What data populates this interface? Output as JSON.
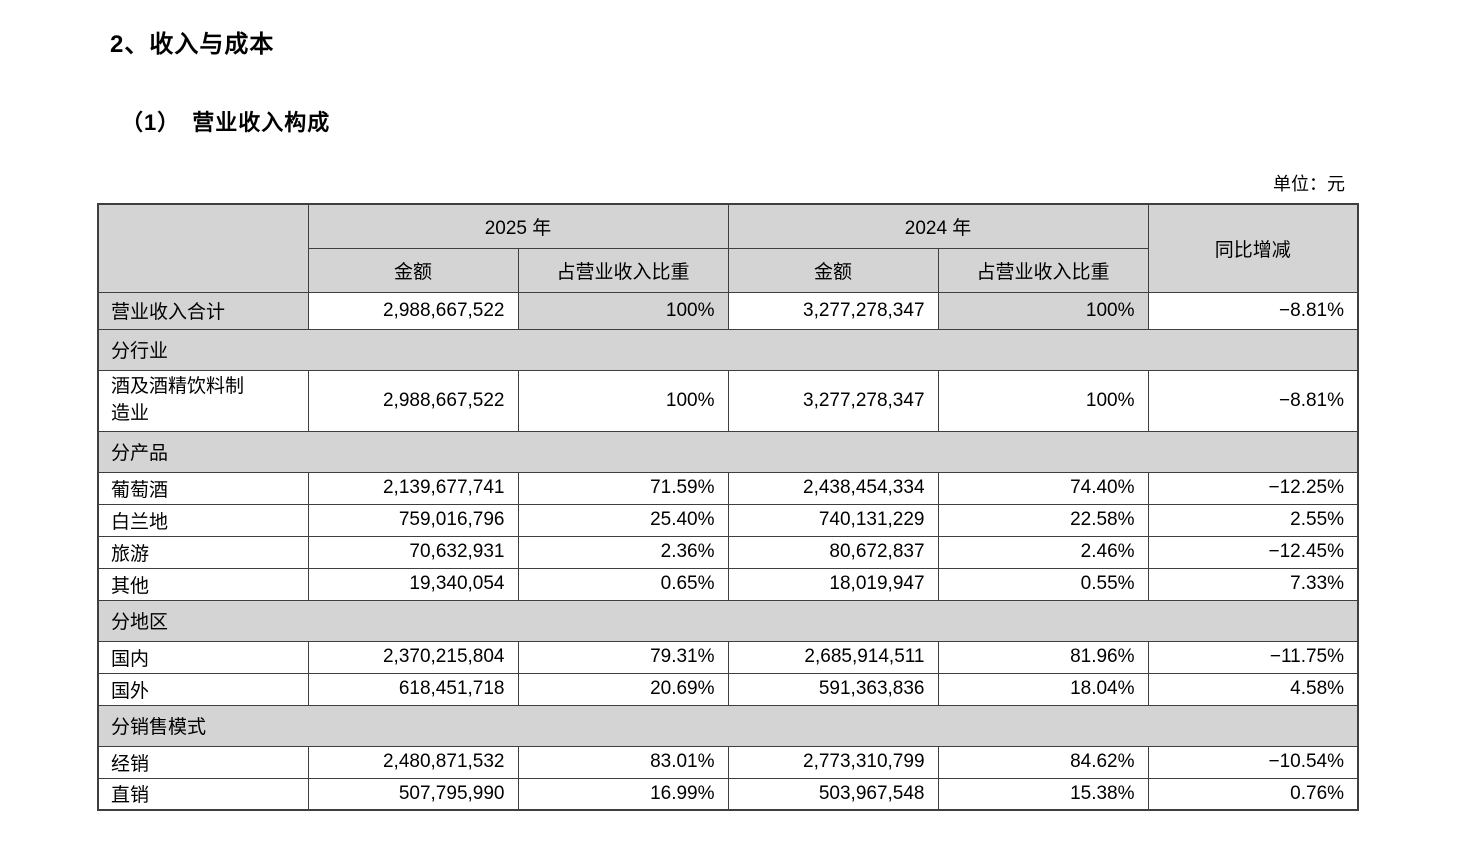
{
  "page": {
    "section_title": "2、收入与成本",
    "subsection_title": "（1）　营业收入构成",
    "unit_label": "单位：元"
  },
  "table": {
    "header": {
      "corner": "",
      "year_2025": "2025 年",
      "year_2024": "2024 年",
      "amount": "金额",
      "ratio": "占营业收入比重",
      "yoy": "同比增减"
    },
    "rows": [
      {
        "type": "data",
        "emphasis": true,
        "label": "营业收入合计",
        "amount_2025": "2,988,667,522",
        "ratio_2025": "100%",
        "amount_2024": "3,277,278,347",
        "ratio_2024": "100%",
        "yoy": "−8.81%"
      },
      {
        "type": "section",
        "label": "分行业"
      },
      {
        "type": "data",
        "label": "酒及酒精饮料制造业",
        "amount_2025": "2,988,667,522",
        "ratio_2025": "100%",
        "amount_2024": "3,277,278,347",
        "ratio_2024": "100%",
        "yoy": "−8.81%"
      },
      {
        "type": "section",
        "label": "分产品"
      },
      {
        "type": "data",
        "label": "葡萄酒",
        "amount_2025": "2,139,677,741",
        "ratio_2025": "71.59%",
        "amount_2024": "2,438,454,334",
        "ratio_2024": "74.40%",
        "yoy": "−12.25%"
      },
      {
        "type": "data",
        "label": "白兰地",
        "amount_2025": "759,016,796",
        "ratio_2025": "25.40%",
        "amount_2024": "740,131,229",
        "ratio_2024": "22.58%",
        "yoy": "2.55%"
      },
      {
        "type": "data",
        "label": "旅游",
        "amount_2025": "70,632,931",
        "ratio_2025": "2.36%",
        "amount_2024": "80,672,837",
        "ratio_2024": "2.46%",
        "yoy": "−12.45%"
      },
      {
        "type": "data",
        "label": "其他",
        "amount_2025": "19,340,054",
        "ratio_2025": "0.65%",
        "amount_2024": "18,019,947",
        "ratio_2024": "0.55%",
        "yoy": "7.33%"
      },
      {
        "type": "section",
        "label": "分地区"
      },
      {
        "type": "data",
        "label": "国内",
        "amount_2025": "2,370,215,804",
        "ratio_2025": "79.31%",
        "amount_2024": "2,685,914,511",
        "ratio_2024": "81.96%",
        "yoy": "−11.75%"
      },
      {
        "type": "data",
        "label": "国外",
        "amount_2025": "618,451,718",
        "ratio_2025": "20.69%",
        "amount_2024": "591,363,836",
        "ratio_2024": "18.04%",
        "yoy": "4.58%"
      },
      {
        "type": "section",
        "label": "分销售模式"
      },
      {
        "type": "data",
        "label": "经销",
        "amount_2025": "2,480,871,532",
        "ratio_2025": "83.01%",
        "amount_2024": "2,773,310,799",
        "ratio_2024": "84.62%",
        "yoy": "−10.54%"
      },
      {
        "type": "data",
        "label": "直销",
        "amount_2025": "507,795,990",
        "ratio_2025": "16.99%",
        "amount_2024": "503,967,548",
        "ratio_2024": "15.38%",
        "yoy": "0.76%"
      }
    ],
    "colors": {
      "header_bg": "#d4d4d4",
      "border": "#3f3f3f"
    }
  }
}
